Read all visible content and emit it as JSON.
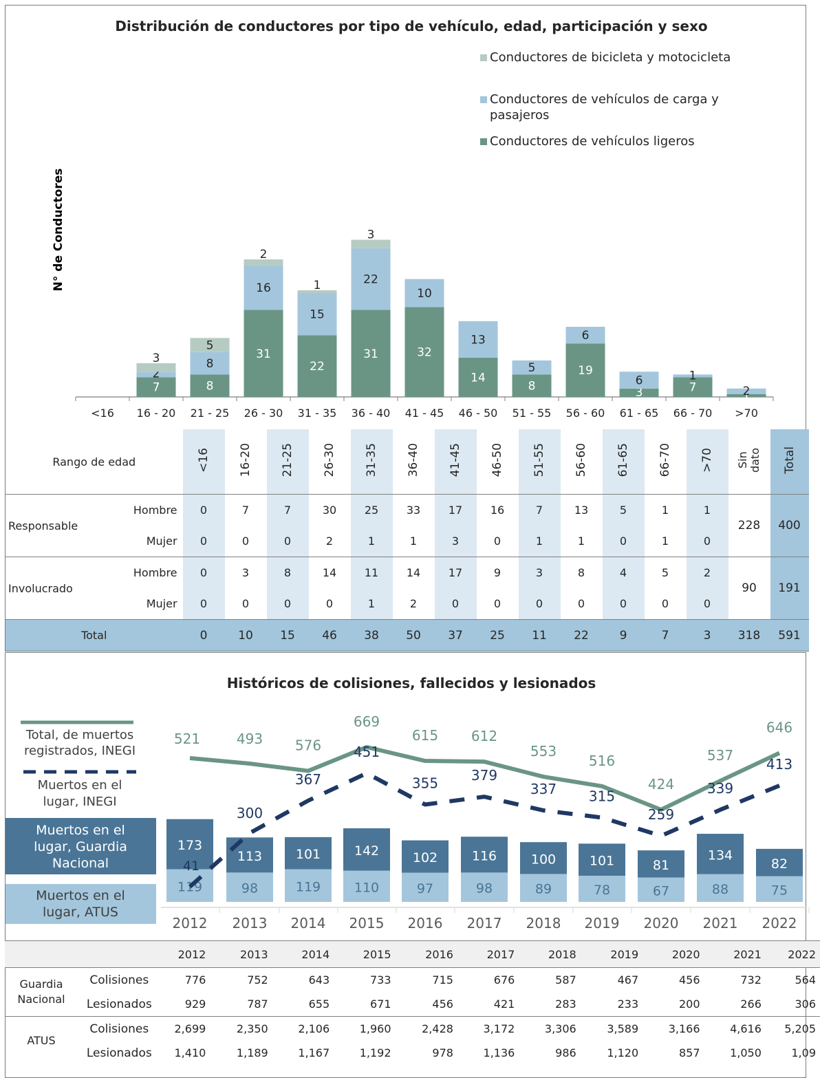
{
  "chart_data": [
    {
      "type": "bar",
      "stacked": true,
      "title": "Distribución de conductores por tipo de vehículo, edad, participación y sexo",
      "ylabel": "N° de Conductores",
      "categories": [
        "<16",
        "16 - 20",
        "21 - 25",
        "26 - 30",
        "31 - 35",
        "36 - 40",
        "41 - 45",
        "46 - 50",
        "51 - 55",
        "56 - 60",
        "61 - 65",
        "66 - 70",
        ">70"
      ],
      "series": [
        {
          "name": "Conductores de vehículos ligeros",
          "color": "#6a9585",
          "values": [
            0,
            7,
            8,
            31,
            22,
            31,
            32,
            14,
            8,
            19,
            3,
            7,
            1
          ]
        },
        {
          "name": "Conductores de vehículos de carga y pasajeros",
          "color": "#a3c6dc",
          "values": [
            0,
            2,
            8,
            16,
            15,
            22,
            10,
            13,
            5,
            6,
            6,
            1,
            2
          ]
        },
        {
          "name": "Conductores de bicicleta y motocicleta",
          "color": "#b6cbc1",
          "values": [
            0,
            3,
            5,
            2,
            1,
            3,
            0,
            0,
            0,
            0,
            0,
            0,
            0
          ]
        }
      ],
      "legend_placement": "top-right"
    },
    {
      "type": "table",
      "header_label": "Rango de edad",
      "columns": [
        "<16",
        "16-20",
        "21-25",
        "26-30",
        "31-35",
        "36-40",
        "41-45",
        "46-50",
        "51-55",
        "56-60",
        "61-65",
        "66-70",
        ">70",
        "Sin dato",
        "Total"
      ],
      "rows": [
        {
          "group": "Responsable",
          "sex": "Hombre",
          "values": [
            "0",
            "7",
            "7",
            "30",
            "25",
            "33",
            "17",
            "16",
            "7",
            "13",
            "5",
            "1",
            "1"
          ]
        },
        {
          "group": "Responsable",
          "sex": "Mujer",
          "values": [
            "0",
            "0",
            "0",
            "2",
            "1",
            "1",
            "3",
            "0",
            "1",
            "1",
            "0",
            "1",
            "0"
          ]
        },
        {
          "group": "Involucrado",
          "sex": "Hombre",
          "values": [
            "0",
            "3",
            "8",
            "14",
            "11",
            "14",
            "17",
            "9",
            "3",
            "8",
            "4",
            "5",
            "2"
          ]
        },
        {
          "group": "Involucrado",
          "sex": "Mujer",
          "values": [
            "0",
            "0",
            "0",
            "0",
            "1",
            "2",
            "0",
            "0",
            "0",
            "0",
            "0",
            "0",
            "0"
          ]
        }
      ],
      "group_sin_dato": {
        "Responsable": "228",
        "Involucrado": "90"
      },
      "group_total": {
        "Responsable": "400",
        "Involucrado": "191"
      },
      "total_label": "Total",
      "total_row": [
        "0",
        "10",
        "15",
        "46",
        "38",
        "50",
        "37",
        "25",
        "11",
        "22",
        "9",
        "7",
        "3",
        "318",
        "591"
      ]
    },
    {
      "type": "line",
      "title": "Históricos de colisiones, fallecidos y lesionados",
      "x": [
        "2012",
        "2013",
        "2014",
        "2015",
        "2016",
        "2017",
        "2018",
        "2019",
        "2020",
        "2021",
        "2022"
      ],
      "lines": [
        {
          "name": "Total, de muertos registrados, INEGI",
          "color": "#6a9585",
          "values": [
            521,
            493,
            576,
            669,
            615,
            612,
            553,
            516,
            424,
            537,
            646
          ]
        },
        {
          "name": "Muertos en el lugar, INEGI",
          "color": "#1f3864",
          "dashed": true,
          "values": [
            41,
            300,
            367,
            451,
            355,
            379,
            337,
            315,
            259,
            339,
            413
          ]
        }
      ],
      "bars": [
        {
          "name": "Muertos en el lugar, Guardia Nacional",
          "color": "#4a7596",
          "values": [
            173,
            113,
            101,
            142,
            102,
            116,
            100,
            101,
            81,
            134,
            82
          ]
        },
        {
          "name": "Muertos en el lugar, ATUS",
          "color": "#a3c6dc",
          "values": [
            119,
            98,
            119,
            110,
            97,
            98,
            89,
            78,
            67,
            88,
            75
          ]
        }
      ]
    },
    {
      "type": "table",
      "years": [
        "2012",
        "2013",
        "2014",
        "2015",
        "2016",
        "2017",
        "2018",
        "2019",
        "2020",
        "2021",
        "2022"
      ],
      "groups": [
        {
          "name": "Guardia Nacional",
          "rows": [
            {
              "label": "Colisiones",
              "values": [
                "776",
                "752",
                "643",
                "733",
                "715",
                "676",
                "587",
                "467",
                "456",
                "732",
                "564"
              ]
            },
            {
              "label": "Lesionados",
              "values": [
                "929",
                "787",
                "655",
                "671",
                "456",
                "421",
                "283",
                "233",
                "200",
                "266",
                "306"
              ]
            }
          ]
        },
        {
          "name": "ATUS",
          "rows": [
            {
              "label": "Colisiones",
              "values": [
                "2,699",
                "2,350",
                "2,106",
                "1,960",
                "2,428",
                "3,172",
                "3,306",
                "3,589",
                "3,166",
                "4,616",
                "5,205"
              ]
            },
            {
              "label": "Lesionados",
              "values": [
                "1,410",
                "1,189",
                "1,167",
                "1,192",
                "978",
                "1,136",
                "986",
                "1,120",
                "857",
                "1,050",
                "1,09"
              ]
            }
          ]
        }
      ]
    }
  ]
}
